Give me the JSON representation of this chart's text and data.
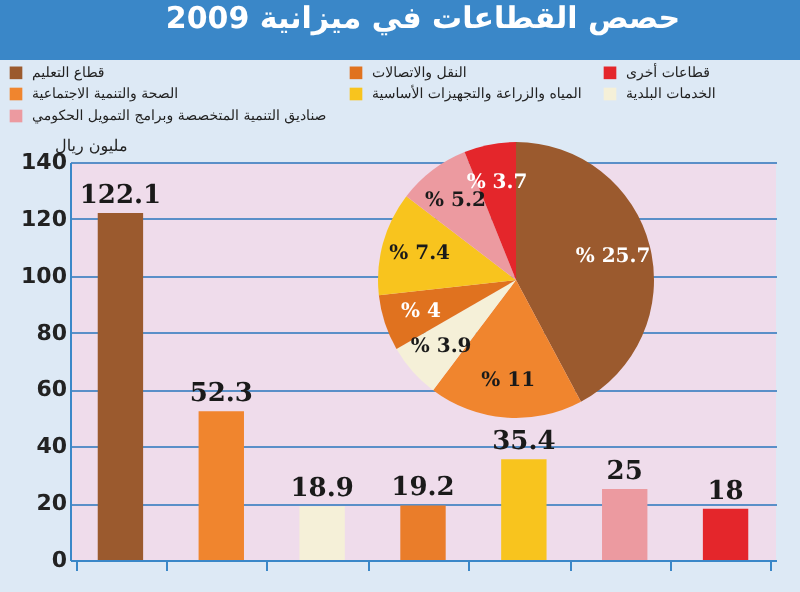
{
  "chart_data": [
    {
      "type": "bar",
      "title": "حصص القطاعات في ميزانية 2009",
      "ylabel": "مليون ريال",
      "categories": [
        null,
        null,
        null,
        null,
        null,
        null,
        null
      ],
      "values": [
        122.1,
        52.3,
        18.9,
        19.2,
        35.4,
        25,
        18
      ],
      "colors": [
        "#9b5a2e",
        "#f0852e",
        "#f5f0d8",
        "#ea7d2a",
        "#f8c41e",
        "#ec9aa0",
        "#e4262b"
      ],
      "ylim": [
        0,
        140
      ],
      "yticks": [
        0,
        20,
        40,
        60,
        80,
        100,
        120,
        140
      ],
      "grid": "y",
      "data_labels": true,
      "tick_labels": "y"
    },
    {
      "type": "pie",
      "legend": "top",
      "categories": [
        "قطاع التعليم",
        "الصحة والتنمية الاجتماعية",
        "الخدمات البلدية",
        "النقل والاتصالات",
        "المياه والزراعة والتجهيزات الأساسية",
        "صناديق التنمية المتخصصة وبرامج التمويل الحكومي",
        "قطاعات أخرى"
      ],
      "values": [
        25.7,
        11,
        3.9,
        4,
        7.4,
        5.2,
        3.7
      ],
      "colors": [
        "#9b5a2e",
        "#f0852e",
        "#f5f0d8",
        "#e0721f",
        "#f8c41e",
        "#ec9aa0",
        "#e4262b"
      ],
      "value_labels": [
        "% 25.7",
        "% 11",
        "% 3.9",
        "% 4",
        "% 7.4",
        "% 5.2",
        "% 3.7"
      ]
    }
  ]
}
